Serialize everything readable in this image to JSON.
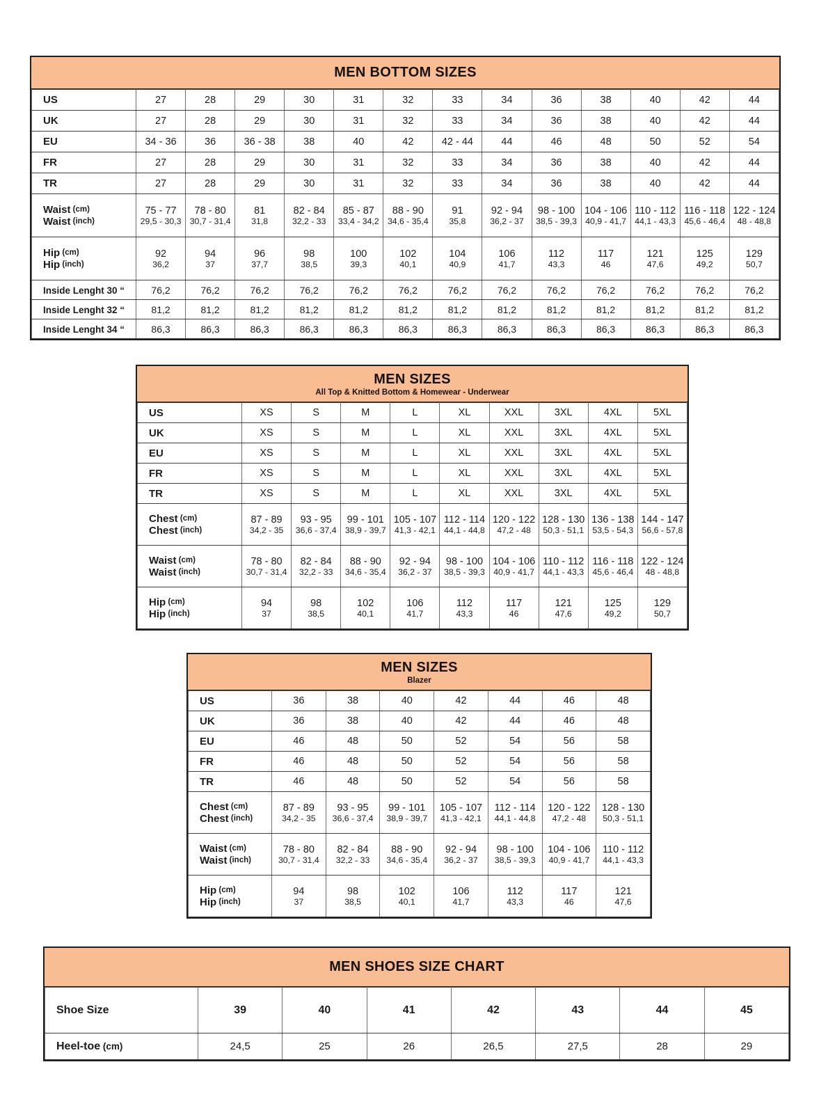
{
  "document": {
    "background": "#ffffff"
  },
  "colors": {
    "header_bg": "#f8bd92",
    "border_outer": "#1f1f1f",
    "border_inner_h": "#3d3d3d",
    "border_inner_v": "#6e6e6e",
    "text": "#1c1c1c"
  },
  "tables": [
    {
      "name": "men-bottom-sizes",
      "title": "MEN BOTTOM SIZES",
      "subtitle": "",
      "rows": [
        {
          "style": "size",
          "label": "US",
          "unit": "",
          "values": [
            "27",
            "28",
            "29",
            "30",
            "31",
            "32",
            "33",
            "34",
            "36",
            "38",
            "40",
            "42",
            "44"
          ]
        },
        {
          "style": "size",
          "label": "UK",
          "unit": "",
          "values": [
            "27",
            "28",
            "29",
            "30",
            "31",
            "32",
            "33",
            "34",
            "36",
            "38",
            "40",
            "42",
            "44"
          ]
        },
        {
          "style": "size",
          "label": "EU",
          "unit": "",
          "values": [
            "34 - 36",
            "36",
            "36 - 38",
            "38",
            "40",
            "42",
            "42 - 44",
            "44",
            "46",
            "48",
            "50",
            "52",
            "54"
          ]
        },
        {
          "style": "size",
          "label": "FR",
          "unit": "",
          "values": [
            "27",
            "28",
            "29",
            "30",
            "31",
            "32",
            "33",
            "34",
            "36",
            "38",
            "40",
            "42",
            "44"
          ]
        },
        {
          "style": "size",
          "label": "TR",
          "unit": "",
          "values": [
            "27",
            "28",
            "29",
            "30",
            "31",
            "32",
            "33",
            "34",
            "36",
            "38",
            "40",
            "42",
            "44"
          ]
        },
        {
          "style": "measure",
          "line1": {
            "label": "Waist",
            "unit": "(cm)",
            "values": [
              "75 - 77",
              "78 - 80",
              "81",
              "82 - 84",
              "85 - 87",
              "88 - 90",
              "91",
              "92 - 94",
              "98 - 100",
              "104 - 106",
              "110 - 112",
              "116 - 118",
              "122 - 124"
            ]
          },
          "line2": {
            "label": "Waist",
            "unit": "(inch)",
            "values": [
              "29,5 - 30,3",
              "30,7 - 31,4",
              "31,8",
              "32,2 - 33",
              "33,4 - 34,2",
              "34,6 - 35,4",
              "35,8",
              "36,2 - 37",
              "38,5 - 39,3",
              "40,9 - 41,7",
              "44,1 - 43,3",
              "45,6 - 46,4",
              "48 - 48,8"
            ]
          }
        },
        {
          "style": "measure",
          "line1": {
            "label": "Hip",
            "unit": "(cm)",
            "values": [
              "92",
              "94",
              "96",
              "98",
              "100",
              "102",
              "104",
              "106",
              "112",
              "117",
              "121",
              "125",
              "129"
            ]
          },
          "line2": {
            "label": "Hip",
            "unit": "(inch)",
            "values": [
              "36,2",
              "37",
              "37,7",
              "38,5",
              "39,3",
              "40,1",
              "40,9",
              "41,7",
              "43,3",
              "46",
              "47,6",
              "49,2",
              "50,7"
            ]
          }
        },
        {
          "style": "inside",
          "label": "Inside Lenght 30 “",
          "unit": "",
          "values": [
            "76,2",
            "76,2",
            "76,2",
            "76,2",
            "76,2",
            "76,2",
            "76,2",
            "76,2",
            "76,2",
            "76,2",
            "76,2",
            "76,2",
            "76,2"
          ]
        },
        {
          "style": "inside",
          "label": "Inside Lenght 32 “",
          "unit": "",
          "values": [
            "81,2",
            "81,2",
            "81,2",
            "81,2",
            "81,2",
            "81,2",
            "81,2",
            "81,2",
            "81,2",
            "81,2",
            "81,2",
            "81,2",
            "81,2"
          ]
        },
        {
          "style": "inside",
          "label": "Inside Lenght 34 “",
          "unit": "",
          "values": [
            "86,3",
            "86,3",
            "86,3",
            "86,3",
            "86,3",
            "86,3",
            "86,3",
            "86,3",
            "86,3",
            "86,3",
            "86,3",
            "86,3",
            "86,3"
          ]
        }
      ]
    },
    {
      "name": "men-sizes-tops",
      "title": "MEN SIZES",
      "subtitle": "All Top & Knitted Bottom & Homewear - Underwear",
      "rows": [
        {
          "style": "size",
          "label": "US",
          "unit": "",
          "values": [
            "XS",
            "S",
            "M",
            "L",
            "XL",
            "XXL",
            "3XL",
            "4XL",
            "5XL"
          ]
        },
        {
          "style": "size",
          "label": "UK",
          "unit": "",
          "values": [
            "XS",
            "S",
            "M",
            "L",
            "XL",
            "XXL",
            "3XL",
            "4XL",
            "5XL"
          ]
        },
        {
          "style": "size",
          "label": "EU",
          "unit": "",
          "values": [
            "XS",
            "S",
            "M",
            "L",
            "XL",
            "XXL",
            "3XL",
            "4XL",
            "5XL"
          ]
        },
        {
          "style": "size",
          "label": "FR",
          "unit": "",
          "values": [
            "XS",
            "S",
            "M",
            "L",
            "XL",
            "XXL",
            "3XL",
            "4XL",
            "5XL"
          ]
        },
        {
          "style": "size",
          "label": "TR",
          "unit": "",
          "values": [
            "XS",
            "S",
            "M",
            "L",
            "XL",
            "XXL",
            "3XL",
            "4XL",
            "5XL"
          ]
        },
        {
          "style": "measure",
          "line1": {
            "label": "Chest",
            "unit": "(cm)",
            "values": [
              "87 - 89",
              "93 - 95",
              "99 - 101",
              "105 - 107",
              "112 - 114",
              "120 - 122",
              "128 - 130",
              "136 - 138",
              "144 - 147"
            ]
          },
          "line2": {
            "label": "Chest",
            "unit": "(inch)",
            "values": [
              "34,2 - 35",
              "36,6 - 37,4",
              "38,9 - 39,7",
              "41,3 - 42,1",
              "44,1 - 44,8",
              "47,2 - 48",
              "50,3 - 51,1",
              "53,5 - 54,3",
              "56,6 - 57,8"
            ]
          }
        },
        {
          "style": "measure",
          "line1": {
            "label": "Waist",
            "unit": "(cm)",
            "values": [
              "78 - 80",
              "82 - 84",
              "88 - 90",
              "92 - 94",
              "98 - 100",
              "104 - 106",
              "110 - 112",
              "116 - 118",
              "122 - 124"
            ]
          },
          "line2": {
            "label": "Waist",
            "unit": "(inch)",
            "values": [
              "30,7 - 31,4",
              "32,2 - 33",
              "34,6 - 35,4",
              "36,2 - 37",
              "38,5 - 39,3",
              "40,9 - 41,7",
              "44,1 - 43,3",
              "45,6 - 46,4",
              "48 - 48,8"
            ]
          }
        },
        {
          "style": "measure",
          "line1": {
            "label": "Hip",
            "unit": "(cm)",
            "values": [
              "94",
              "98",
              "102",
              "106",
              "112",
              "117",
              "121",
              "125",
              "129"
            ]
          },
          "line2": {
            "label": "Hip",
            "unit": "(inch)",
            "values": [
              "37",
              "38,5",
              "40,1",
              "41,7",
              "43,3",
              "46",
              "47,6",
              "49,2",
              "50,7"
            ]
          }
        }
      ]
    },
    {
      "name": "men-sizes-blazer",
      "title": "MEN SIZES",
      "subtitle": "Blazer",
      "rows": [
        {
          "style": "size",
          "label": "US",
          "unit": "",
          "values": [
            "36",
            "38",
            "40",
            "42",
            "44",
            "46",
            "48"
          ]
        },
        {
          "style": "size",
          "label": "UK",
          "unit": "",
          "values": [
            "36",
            "38",
            "40",
            "42",
            "44",
            "46",
            "48"
          ]
        },
        {
          "style": "size",
          "label": "EU",
          "unit": "",
          "values": [
            "46",
            "48",
            "50",
            "52",
            "54",
            "56",
            "58"
          ]
        },
        {
          "style": "size",
          "label": "FR",
          "unit": "",
          "values": [
            "46",
            "48",
            "50",
            "52",
            "54",
            "56",
            "58"
          ]
        },
        {
          "style": "size",
          "label": "TR",
          "unit": "",
          "values": [
            "46",
            "48",
            "50",
            "52",
            "54",
            "56",
            "58"
          ]
        },
        {
          "style": "measure",
          "line1": {
            "label": "Chest",
            "unit": "(cm)",
            "values": [
              "87 - 89",
              "93 - 95",
              "99 - 101",
              "105 - 107",
              "112 - 114",
              "120 - 122",
              "128 - 130"
            ]
          },
          "line2": {
            "label": "Chest",
            "unit": "(inch)",
            "values": [
              "34,2 - 35",
              "36,6 - 37,4",
              "38,9 - 39,7",
              "41,3 - 42,1",
              "44,1 - 44,8",
              "47,2 - 48",
              "50,3 - 51,1"
            ]
          }
        },
        {
          "style": "measure",
          "line1": {
            "label": "Waist",
            "unit": "(cm)",
            "values": [
              "78 - 80",
              "82 - 84",
              "88 - 90",
              "92 - 94",
              "98 - 100",
              "104 - 106",
              "110 - 112"
            ]
          },
          "line2": {
            "label": "Waist",
            "unit": "(inch)",
            "values": [
              "30,7 - 31,4",
              "32,2 - 33",
              "34,6 - 35,4",
              "36,2 - 37",
              "38,5 - 39,3",
              "40,9 - 41,7",
              "44,1 - 43,3"
            ]
          }
        },
        {
          "style": "measure",
          "line1": {
            "label": "Hip",
            "unit": "(cm)",
            "values": [
              "94",
              "98",
              "102",
              "106",
              "112",
              "117",
              "121"
            ]
          },
          "line2": {
            "label": "Hip",
            "unit": "(inch)",
            "values": [
              "37",
              "38,5",
              "40,1",
              "41,7",
              "43,3",
              "46",
              "47,6"
            ]
          }
        }
      ]
    },
    {
      "name": "men-shoes-size-chart",
      "title": "MEN SHOES SIZE CHART",
      "subtitle": "",
      "rows": [
        {
          "style": "shoe",
          "label": "Shoe Size",
          "unit": "",
          "values": [
            "39",
            "40",
            "41",
            "42",
            "43",
            "44",
            "45"
          ]
        },
        {
          "style": "heel",
          "label": "Heel-toe",
          "unit": "(cm)",
          "values": [
            "24,5",
            "25",
            "26",
            "26,5",
            "27,5",
            "28",
            "29"
          ]
        }
      ]
    }
  ]
}
